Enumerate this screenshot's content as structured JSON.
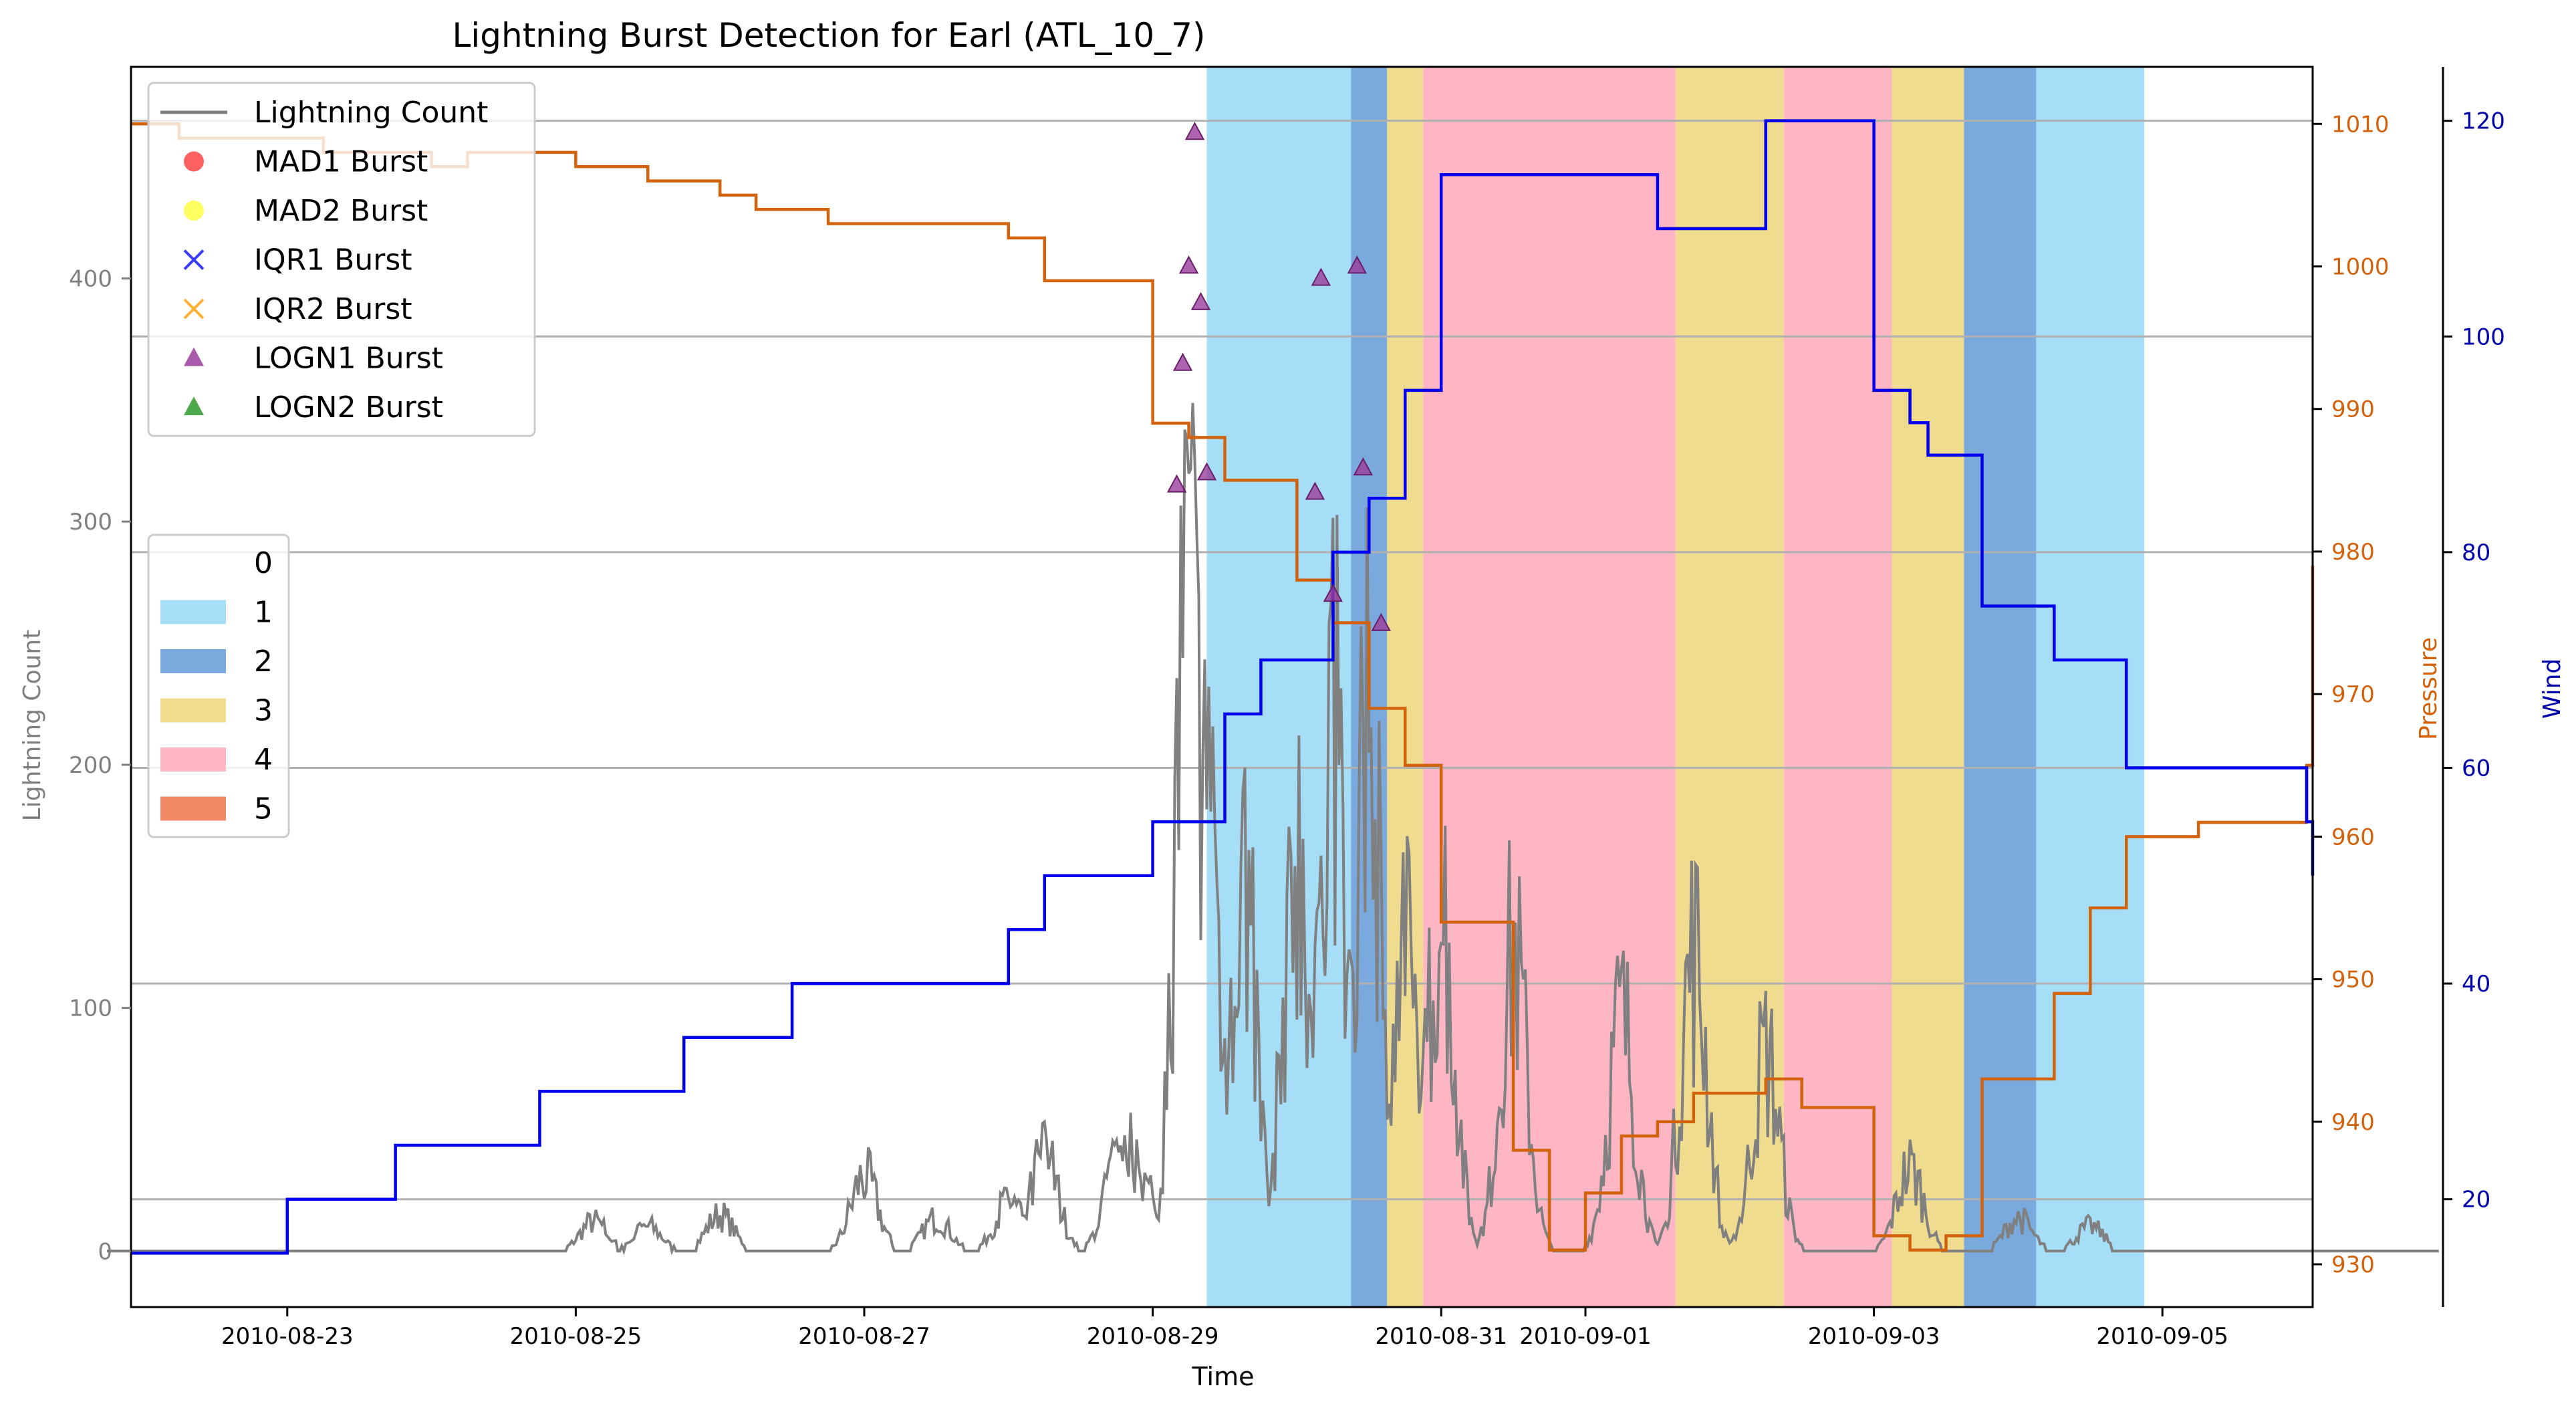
{
  "chart_data": {
    "type": "line",
    "title": "Lightning Burst Detection for Earl (ATL_10_7)",
    "xlabel": "Time",
    "ylabel_left": "Lightning Count",
    "ylabel_pressure": "Pressure",
    "ylabel_wind": "Wind",
    "x_range": [
      "2010-08-21 22:00",
      "2010-09-06 01:00"
    ],
    "x_ticks": [
      "2010-08-23",
      "2010-08-25",
      "2010-08-27",
      "2010-08-29",
      "2010-08-31",
      "2010-09-01",
      "2010-09-03",
      "2010-09-05"
    ],
    "ylim_left": [
      -23,
      487
    ],
    "yticks_left": [
      0,
      100,
      200,
      300,
      400
    ],
    "ylim_pressure": [
      927,
      1014
    ],
    "yticks_pressure": [
      930,
      940,
      950,
      960,
      970,
      980,
      990,
      1000,
      1010
    ],
    "ylim_wind": [
      10,
      125
    ],
    "yticks_wind": [
      20,
      40,
      60,
      80,
      100,
      120
    ],
    "grid": "horizontal lines at wind ticks",
    "colors": {
      "lightning": "#808080",
      "pressure": "#d2620c",
      "wind": "#0000ee",
      "cat1": "#a6def8",
      "cat2": "#7aa9dd",
      "cat3": "#f0dc8e",
      "cat4": "#ffb6c4",
      "cat5": "#f08866",
      "logn1": "#9b3d9b"
    },
    "category_spans": [
      {
        "cat": 1,
        "start": "2010-08-29 09:00",
        "end": "2010-08-30 09:00"
      },
      {
        "cat": 2,
        "start": "2010-08-30 09:00",
        "end": "2010-08-30 15:00"
      },
      {
        "cat": 3,
        "start": "2010-08-30 15:00",
        "end": "2010-08-30 21:00"
      },
      {
        "cat": 4,
        "start": "2010-08-30 21:00",
        "end": "2010-09-01 15:00"
      },
      {
        "cat": 3,
        "start": "2010-09-01 15:00",
        "end": "2010-09-02 09:00"
      },
      {
        "cat": 4,
        "start": "2010-09-02 09:00",
        "end": "2010-09-03 03:00"
      },
      {
        "cat": 3,
        "start": "2010-09-03 03:00",
        "end": "2010-09-03 15:00"
      },
      {
        "cat": 2,
        "start": "2010-09-03 15:00",
        "end": "2010-09-04 03:00"
      },
      {
        "cat": 1,
        "start": "2010-09-04 03:00",
        "end": "2010-09-04 21:00"
      }
    ],
    "wind_series": {
      "name": "Wind",
      "points": [
        [
          "2010-08-21 18:00",
          15
        ],
        [
          "2010-08-23 00:00",
          20
        ],
        [
          "2010-08-23 18:00",
          25
        ],
        [
          "2010-08-24 18:00",
          30
        ],
        [
          "2010-08-25 18:00",
          35
        ],
        [
          "2010-08-26 12:00",
          40
        ],
        [
          "2010-08-28 00:00",
          45
        ],
        [
          "2010-08-28 06:00",
          50
        ],
        [
          "2010-08-28 18:00",
          50
        ],
        [
          "2010-08-29 00:00",
          55
        ],
        [
          "2010-08-29 12:00",
          65
        ],
        [
          "2010-08-29 18:00",
          70
        ],
        [
          "2010-08-30 06:00",
          80
        ],
        [
          "2010-08-30 12:00",
          85
        ],
        [
          "2010-08-30 18:00",
          95
        ],
        [
          "2010-08-31 00:00",
          115
        ],
        [
          "2010-09-01 12:00",
          110
        ],
        [
          "2010-09-02 06:00",
          120
        ],
        [
          "2010-09-03 00:00",
          95
        ],
        [
          "2010-09-03 06:00",
          92
        ],
        [
          "2010-09-03 09:00",
          89
        ],
        [
          "2010-09-03 18:00",
          75
        ],
        [
          "2010-09-04 06:00",
          70
        ],
        [
          "2010-09-04 18:00",
          60
        ],
        [
          "2010-09-06 00:00",
          55
        ],
        [
          "2010-09-06 12:00",
          50
        ]
      ]
    },
    "pressure_series": {
      "name": "Pressure",
      "points": [
        [
          "2010-08-21 18:00",
          1010
        ],
        [
          "2010-08-22 06:00",
          1009
        ],
        [
          "2010-08-23 06:00",
          1008
        ],
        [
          "2010-08-23 12:00",
          1008
        ],
        [
          "2010-08-24 00:00",
          1007
        ],
        [
          "2010-08-24 06:00",
          1008
        ],
        [
          "2010-08-25 00:00",
          1007
        ],
        [
          "2010-08-25 12:00",
          1006
        ],
        [
          "2010-08-26 00:00",
          1005
        ],
        [
          "2010-08-26 06:00",
          1004
        ],
        [
          "2010-08-26 18:00",
          1003
        ],
        [
          "2010-08-28 00:00",
          1002
        ],
        [
          "2010-08-28 06:00",
          999
        ],
        [
          "2010-08-29 00:00",
          989
        ],
        [
          "2010-08-29 06:00",
          988
        ],
        [
          "2010-08-29 12:00",
          985
        ],
        [
          "2010-08-30 00:00",
          978
        ],
        [
          "2010-08-30 06:00",
          975
        ],
        [
          "2010-08-30 12:00",
          969
        ],
        [
          "2010-08-30 18:00",
          965
        ],
        [
          "2010-08-31 00:00",
          954
        ],
        [
          "2010-08-31 12:00",
          938
        ],
        [
          "2010-08-31 18:00",
          931
        ],
        [
          "2010-09-01 00:00",
          935
        ],
        [
          "2010-09-01 06:00",
          939
        ],
        [
          "2010-09-01 12:00",
          940
        ],
        [
          "2010-09-01 18:00",
          942
        ],
        [
          "2010-09-02 06:00",
          943
        ],
        [
          "2010-09-02 12:00",
          941
        ],
        [
          "2010-09-03 00:00",
          932
        ],
        [
          "2010-09-03 06:00",
          931
        ],
        [
          "2010-09-03 12:00",
          932
        ],
        [
          "2010-09-03 18:00",
          943
        ],
        [
          "2010-09-04 06:00",
          949
        ],
        [
          "2010-09-04 12:00",
          955
        ],
        [
          "2010-09-04 18:00",
          960
        ],
        [
          "2010-09-05 06:00",
          961
        ],
        [
          "2010-09-05 12:00",
          961
        ],
        [
          "2010-09-06 00:00",
          965
        ],
        [
          "2010-09-06 12:00",
          966
        ],
        [
          "2010-09-06 18:00",
          968
        ],
        [
          "2010-09-06 22:00",
          979
        ]
      ]
    },
    "lightning_peaks": [
      [
        "2010-08-25 03:00",
        18
      ],
      [
        "2010-08-25 12:00",
        15
      ],
      [
        "2010-08-26 00:00",
        22
      ],
      [
        "2010-08-27 00:00",
        45
      ],
      [
        "2010-08-27 12:00",
        20
      ],
      [
        "2010-08-28 00:00",
        30
      ],
      [
        "2010-08-28 06:00",
        58
      ],
      [
        "2010-08-28 18:00",
        50
      ],
      [
        "2010-08-28 21:00",
        65
      ],
      [
        "2010-08-29 06:00",
        400
      ],
      [
        "2010-08-29 09:00",
        280
      ],
      [
        "2010-08-29 15:00",
        220
      ],
      [
        "2010-08-30 00:00",
        250
      ],
      [
        "2010-08-30 06:00",
        320
      ],
      [
        "2010-08-30 12:00",
        310
      ],
      [
        "2010-08-30 18:00",
        180
      ],
      [
        "2010-08-31 00:00",
        210
      ],
      [
        "2010-08-31 12:00",
        180
      ],
      [
        "2010-09-01 06:00",
        140
      ],
      [
        "2010-09-01 18:00",
        180
      ],
      [
        "2010-09-02 06:00",
        120
      ],
      [
        "2010-09-03 06:00",
        50
      ],
      [
        "2010-09-04 00:00",
        20
      ],
      [
        "2010-09-04 12:00",
        15
      ]
    ],
    "logn1_bursts": [
      [
        "2010-08-29 04:00",
        315
      ],
      [
        "2010-08-29 05:00",
        365
      ],
      [
        "2010-08-29 06:00",
        405
      ],
      [
        "2010-08-29 07:00",
        460
      ],
      [
        "2010-08-29 08:00",
        390
      ],
      [
        "2010-08-29 09:00",
        320
      ],
      [
        "2010-08-30 03:00",
        312
      ],
      [
        "2010-08-30 04:00",
        400
      ],
      [
        "2010-08-30 06:00",
        270
      ],
      [
        "2010-08-30 10:00",
        405
      ],
      [
        "2010-08-30 11:00",
        322
      ],
      [
        "2010-08-30 14:00",
        258
      ]
    ],
    "legend_markers": {
      "placement": "upper left",
      "entries": [
        {
          "label": "Lightning Count",
          "marker": "line",
          "color": "#808080"
        },
        {
          "label": "MAD1 Burst",
          "marker": "circle",
          "color": "#ff3a3a"
        },
        {
          "label": "MAD2 Burst",
          "marker": "circle",
          "color": "#ffff3a"
        },
        {
          "label": "IQR1 Burst",
          "marker": "x",
          "color": "#3a3aff"
        },
        {
          "label": "IQR2 Burst",
          "marker": "x",
          "color": "#ffb030"
        },
        {
          "label": "LOGN1 Burst",
          "marker": "triangle",
          "color": "#9b3d9b"
        },
        {
          "label": "LOGN2 Burst",
          "marker": "triangle",
          "color": "#2f9a2f"
        }
      ]
    },
    "legend_categories": {
      "placement": "center left",
      "entries": [
        {
          "label": "0",
          "color": ""
        },
        {
          "label": "1",
          "color": "#a6def8"
        },
        {
          "label": "2",
          "color": "#7aa9dd"
        },
        {
          "label": "3",
          "color": "#f0dc8e"
        },
        {
          "label": "4",
          "color": "#ffb6c4"
        },
        {
          "label": "5",
          "color": "#f08866"
        }
      ]
    }
  }
}
